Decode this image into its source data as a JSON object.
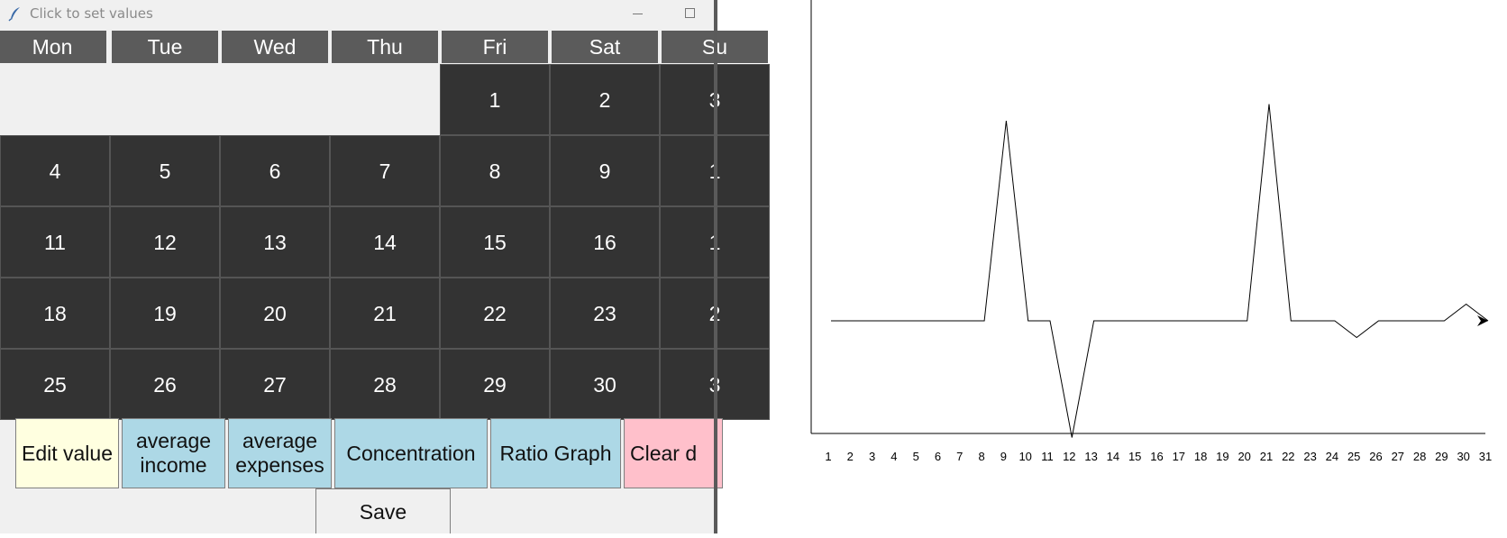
{
  "window": {
    "title": "Click to set values",
    "icon": "feather-icon",
    "controls": [
      "minimize-icon",
      "maximize-icon"
    ]
  },
  "calendar": {
    "weekdays": [
      "Mon",
      "Tue",
      "Wed",
      "Thu",
      "Fri",
      "Sat",
      "Su"
    ],
    "weeks": [
      [
        "",
        "",
        "",
        "",
        "1",
        "2",
        "3"
      ],
      [
        "4",
        "5",
        "6",
        "7",
        "8",
        "9",
        "1"
      ],
      [
        "11",
        "12",
        "13",
        "14",
        "15",
        "16",
        "1"
      ],
      [
        "18",
        "19",
        "20",
        "21",
        "22",
        "23",
        "2"
      ],
      [
        "25",
        "26",
        "27",
        "28",
        "29",
        "30",
        "3"
      ]
    ]
  },
  "buttons": {
    "edit_value": "Edit value",
    "average_income": "average\nincome",
    "average_expenses": "average\nexpenses",
    "concentration": "Concentration",
    "ratio_graph": "Ratio Graph",
    "clear": "Clear d",
    "save": "Save"
  },
  "colors": {
    "cell_bg": "#333333",
    "header_bg": "#5b5b5b",
    "edit_button": "#ffffe0",
    "action_buttons": "#add8e6",
    "clear_button": "#ffc0cb"
  },
  "chart_data": {
    "type": "line",
    "title": "",
    "xlabel": "",
    "ylabel": "",
    "x": [
      1,
      2,
      3,
      4,
      5,
      6,
      7,
      8,
      9,
      10,
      11,
      12,
      13,
      14,
      15,
      16,
      17,
      18,
      19,
      20,
      21,
      22,
      23,
      24,
      25,
      26,
      27,
      28,
      29,
      30,
      31
    ],
    "y": [
      0,
      0,
      0,
      0,
      0,
      0,
      0,
      0,
      12,
      0,
      0,
      -7,
      0,
      0,
      0,
      0,
      0,
      0,
      0,
      0,
      13,
      0,
      0,
      0,
      -1,
      0,
      0,
      0,
      0,
      1,
      0
    ],
    "ylim": [
      -7,
      13
    ],
    "grid": false,
    "arrow_at_end": true
  }
}
